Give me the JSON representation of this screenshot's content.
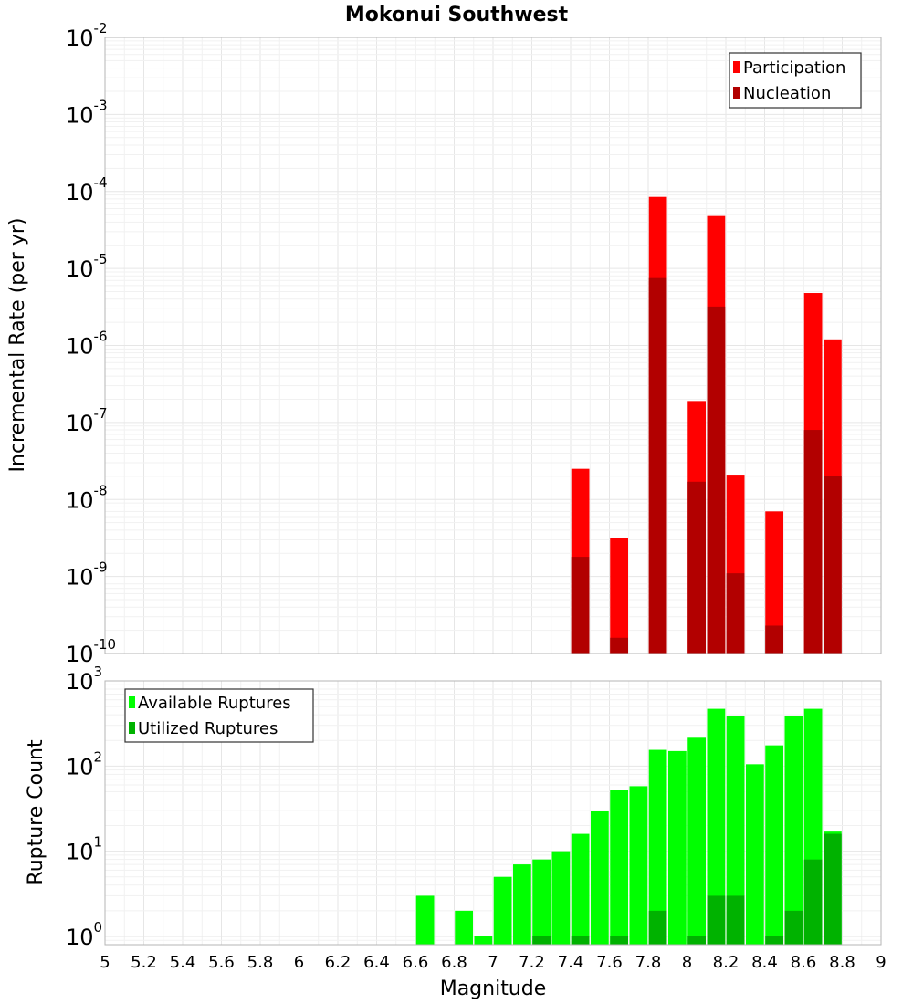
{
  "chart_data": [
    {
      "type": "bar",
      "title": "Mokonui Southwest",
      "xlabel": "",
      "ylabel": "Incremental Rate (per yr)",
      "yscale": "log",
      "xlim": [
        5,
        9
      ],
      "ylim": [
        1e-10,
        0.01
      ],
      "bin_width": 0.1,
      "y_tick_exponents": [
        "-10",
        "-9",
        "-8",
        "-7",
        "-6",
        "-5",
        "-4",
        "-3",
        "-2"
      ],
      "legend": {
        "position": "top-right",
        "entries": [
          "Participation",
          "Nucleation"
        ]
      },
      "series": [
        {
          "name": "Participation",
          "color": "#ff0000",
          "x": [
            7.45,
            7.65,
            7.85,
            8.05,
            8.15,
            8.25,
            8.45,
            8.65,
            8.75
          ],
          "values": [
            2.5e-08,
            3.2e-09,
            8.5e-05,
            1.9e-07,
            4.8e-05,
            2.1e-08,
            7e-09,
            4.8e-06,
            1.2e-06
          ]
        },
        {
          "name": "Nucleation",
          "color": "#b20000",
          "x": [
            7.45,
            7.65,
            7.85,
            8.05,
            8.15,
            8.25,
            8.45,
            8.65,
            8.75
          ],
          "values": [
            1.8e-09,
            1.6e-10,
            7.5e-06,
            1.7e-08,
            3.2e-06,
            1.1e-09,
            2.3e-10,
            8e-08,
            2e-08
          ]
        }
      ]
    },
    {
      "type": "bar",
      "title": "",
      "xlabel": "Magnitude",
      "ylabel": "Rupture Count",
      "yscale": "log",
      "xlim": [
        5,
        9
      ],
      "ylim": [
        0.8,
        1000
      ],
      "bin_width": 0.1,
      "x_ticks": [
        "5",
        "5.2",
        "5.4",
        "5.6",
        "5.8",
        "6",
        "6.2",
        "6.4",
        "6.6",
        "6.8",
        "7",
        "7.2",
        "7.4",
        "7.6",
        "7.8",
        "8",
        "8.2",
        "8.4",
        "8.6",
        "8.8",
        "9"
      ],
      "y_tick_exponents": [
        "0",
        "1",
        "2",
        "3"
      ],
      "legend": {
        "position": "top-left",
        "entries": [
          "Available Ruptures",
          "Utilized Ruptures"
        ]
      },
      "series": [
        {
          "name": "Available Ruptures",
          "color": "#00ff00",
          "x": [
            6.65,
            6.85,
            6.95,
            7.05,
            7.15,
            7.25,
            7.35,
            7.45,
            7.55,
            7.65,
            7.75,
            7.85,
            7.95,
            8.05,
            8.15,
            8.25,
            8.35,
            8.45,
            8.55,
            8.65,
            8.75
          ],
          "values": [
            3,
            2,
            1,
            5,
            7,
            8,
            10,
            16,
            30,
            52,
            58,
            155,
            150,
            215,
            470,
            390,
            105,
            175,
            390,
            470,
            17
          ]
        },
        {
          "name": "Utilized Ruptures",
          "color": "#00b200",
          "x": [
            7.25,
            7.45,
            7.65,
            7.85,
            8.05,
            8.15,
            8.25,
            8.45,
            8.55,
            8.65,
            8.75
          ],
          "values": [
            1,
            1,
            1,
            2,
            1,
            3,
            3,
            1,
            2,
            8,
            16
          ]
        }
      ]
    }
  ]
}
